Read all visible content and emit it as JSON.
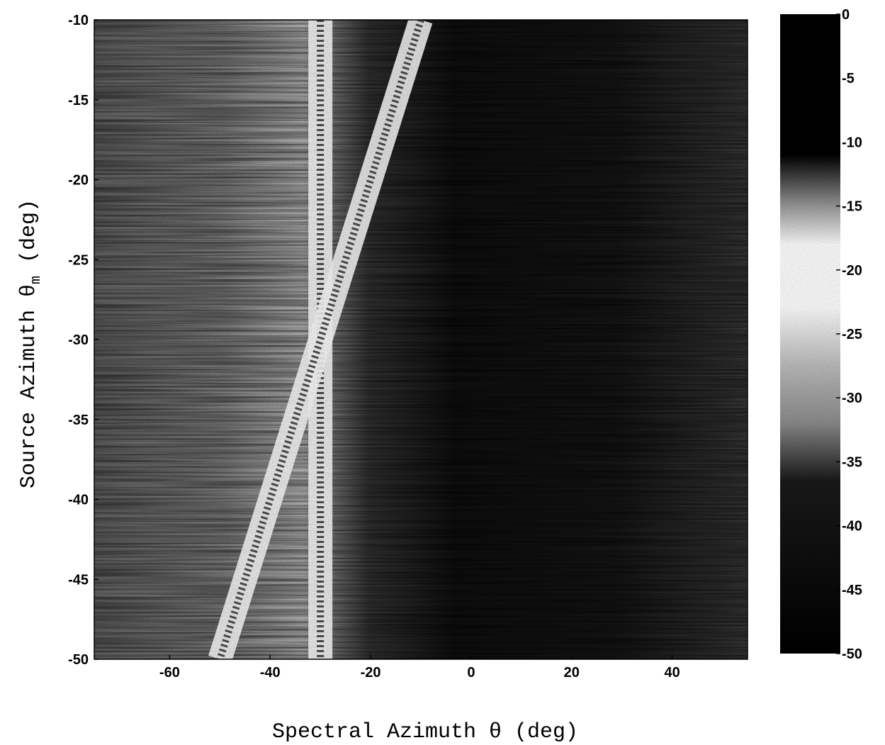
{
  "chart_data": {
    "type": "heatmap",
    "title": "",
    "xlabel": "Spectral Azimuth θ (deg)",
    "ylabel": "Source Azimuth θm (deg)",
    "ylabel_parts": {
      "main": "Source Azimuth θ",
      "subscript": "m",
      "unit": "(deg)"
    },
    "xlim": [
      -75,
      55
    ],
    "ylim": [
      -50,
      -10
    ],
    "x_ticks": [
      -60,
      -40,
      -20,
      0,
      20,
      40
    ],
    "x_tick_labels": [
      "-60",
      "-40",
      "-20",
      "0",
      "20",
      "40"
    ],
    "y_ticks": [
      -10,
      -15,
      -20,
      -25,
      -30,
      -35,
      -40,
      -45,
      -50
    ],
    "y_tick_labels": [
      "-10",
      "-15",
      "-20",
      "-25",
      "-30",
      "-35",
      "-40",
      "-45",
      "-50"
    ],
    "colorbar": {
      "range": [
        -50,
        0
      ],
      "ticks": [
        0,
        -5,
        -10,
        -15,
        -20,
        -25,
        -30,
        -35,
        -40,
        -45,
        -50
      ],
      "tick_labels": [
        "0",
        "-5",
        "-10",
        "-15",
        "-20",
        "-25",
        "-30",
        "-35",
        "-40",
        "-45",
        "-50"
      ],
      "colormap": "grayscale-dark-ends"
    },
    "features": [
      {
        "name": "",
        "x": [
          -30,
          -30
        ],
        "y": [
          -10,
          -50
        ]
      },
      {
        "name": "",
        "x": [
          -10,
          -50
        ],
        "y": [
          -10,
          -50
        ]
      }
    ],
    "grid": false,
    "legend": "none"
  }
}
